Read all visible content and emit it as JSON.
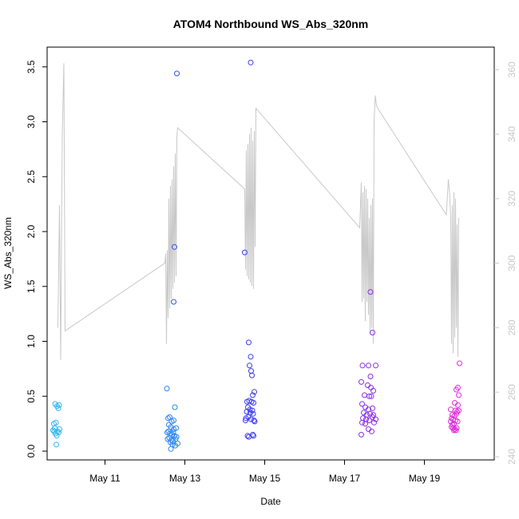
{
  "chart_data": {
    "type": "scatter",
    "title": "ATOM4 Northbound WS_Abs_320nm",
    "xlabel": "Date",
    "ylabel": "WS_Abs_320nm",
    "x_axis": {
      "unit": "day-of-May",
      "range": [
        9.55,
        20.75
      ],
      "ticks": [
        11,
        13,
        15,
        17,
        19
      ],
      "tick_labels": [
        "May 11",
        "May 13",
        "May 15",
        "May 17",
        "May 19"
      ]
    },
    "y_left": {
      "range": [
        -0.08,
        3.68
      ],
      "ticks": [
        0.0,
        0.5,
        1.0,
        1.5,
        2.0,
        2.5,
        3.0,
        3.5
      ],
      "tick_labels": [
        "0.0",
        "0.5",
        "1.0",
        "1.5",
        "2.0",
        "2.5",
        "3.0",
        "3.5"
      ]
    },
    "y_right": {
      "range": [
        239,
        367
      ],
      "ticks": [
        240,
        260,
        280,
        300,
        320,
        340,
        360
      ],
      "tick_labels": [
        "240",
        "260",
        "280",
        "300",
        "320",
        "340",
        "360"
      ],
      "color": "#c8c8c8"
    },
    "grid": false,
    "legend": "none",
    "line_series": {
      "axis": "right",
      "color": "#c8c8c8",
      "points": [
        [
          9.82,
          280
        ],
        [
          9.86,
          318
        ],
        [
          9.89,
          270
        ],
        [
          9.93,
          340
        ],
        [
          9.97,
          362
        ],
        [
          10.0,
          279
        ],
        [
          12.5,
          300
        ],
        [
          12.52,
          303
        ],
        [
          12.54,
          275
        ],
        [
          12.56,
          304
        ],
        [
          12.58,
          283
        ],
        [
          12.6,
          320
        ],
        [
          12.62,
          286
        ],
        [
          12.64,
          324
        ],
        [
          12.66,
          289
        ],
        [
          12.68,
          326
        ],
        [
          12.7,
          292
        ],
        [
          12.72,
          330
        ],
        [
          12.74,
          294
        ],
        [
          12.76,
          334
        ],
        [
          12.78,
          296
        ],
        [
          12.8,
          339
        ],
        [
          12.82,
          342
        ],
        [
          14.5,
          323
        ],
        [
          14.52,
          298
        ],
        [
          14.54,
          335
        ],
        [
          14.56,
          296
        ],
        [
          14.58,
          337
        ],
        [
          14.6,
          295
        ],
        [
          14.62,
          340
        ],
        [
          14.64,
          294
        ],
        [
          14.66,
          342
        ],
        [
          14.68,
          293
        ],
        [
          14.7,
          338
        ],
        [
          14.72,
          292
        ],
        [
          14.74,
          341
        ],
        [
          14.76,
          305
        ],
        [
          14.78,
          348
        ],
        [
          17.38,
          311
        ],
        [
          17.42,
          325
        ],
        [
          17.44,
          288
        ],
        [
          17.46,
          322
        ],
        [
          17.48,
          289
        ],
        [
          17.5,
          324
        ],
        [
          17.52,
          282
        ],
        [
          17.54,
          323
        ],
        [
          17.56,
          288
        ],
        [
          17.58,
          320
        ],
        [
          17.6,
          284
        ],
        [
          17.62,
          314
        ],
        [
          17.64,
          278
        ],
        [
          17.66,
          318
        ],
        [
          17.68,
          280
        ],
        [
          17.7,
          320
        ],
        [
          17.72,
          275
        ],
        [
          17.74,
          344
        ],
        [
          17.77,
          352
        ],
        [
          17.8,
          349
        ],
        [
          17.83,
          348
        ],
        [
          19.55,
          315
        ],
        [
          19.6,
          326
        ],
        [
          19.63,
          322
        ],
        [
          19.66,
          314
        ],
        [
          19.68,
          275
        ],
        [
          19.7,
          318
        ],
        [
          19.72,
          272
        ],
        [
          19.74,
          322
        ],
        [
          19.76,
          277
        ],
        [
          19.78,
          320
        ],
        [
          19.8,
          280
        ],
        [
          19.82,
          312
        ],
        [
          19.84,
          271
        ],
        [
          19.86,
          314
        ]
      ]
    },
    "scatter_series": {
      "axis": "left",
      "points": [
        [
          9.75,
          0.43,
          "#2bb6f2"
        ],
        [
          9.8,
          0.41,
          "#2bb6f2"
        ],
        [
          9.85,
          0.42,
          "#2bb6f2"
        ],
        [
          9.83,
          0.39,
          "#2bb6f2"
        ],
        [
          9.72,
          0.25,
          "#2bb6f2"
        ],
        [
          9.77,
          0.26,
          "#2bb6f2"
        ],
        [
          9.74,
          0.21,
          "#2bb6f2"
        ],
        [
          9.7,
          0.19,
          "#2bb6f2"
        ],
        [
          9.86,
          0.2,
          "#2bb6f2"
        ],
        [
          9.81,
          0.18,
          "#2bb6f2"
        ],
        [
          9.76,
          0.16,
          "#2bb6f2"
        ],
        [
          9.79,
          0.14,
          "#2bb6f2"
        ],
        [
          9.84,
          0.17,
          "#2bb6f2"
        ],
        [
          9.73,
          0.18,
          "#2bb6f2"
        ],
        [
          9.78,
          0.06,
          "#2bb6f2"
        ],
        [
          12.55,
          0.57,
          "#2b86f2"
        ],
        [
          12.75,
          0.4,
          "#2b86f2"
        ],
        [
          12.58,
          0.3,
          "#2b86f2"
        ],
        [
          12.62,
          0.31,
          "#2b86f2"
        ],
        [
          12.67,
          0.27,
          "#2b86f2"
        ],
        [
          12.72,
          0.28,
          "#2b86f2"
        ],
        [
          12.6,
          0.24,
          "#2b86f2"
        ],
        [
          12.65,
          0.22,
          "#2b86f2"
        ],
        [
          12.78,
          0.21,
          "#2b86f2"
        ],
        [
          12.56,
          0.17,
          "#2b86f2"
        ],
        [
          12.59,
          0.18,
          "#2b86f2"
        ],
        [
          12.63,
          0.16,
          "#2b86f2"
        ],
        [
          12.68,
          0.15,
          "#2b86f2"
        ],
        [
          12.71,
          0.17,
          "#2b86f2"
        ],
        [
          12.74,
          0.14,
          "#2b86f2"
        ],
        [
          12.79,
          0.13,
          "#2b86f2"
        ],
        [
          12.57,
          0.11,
          "#2b86f2"
        ],
        [
          12.61,
          0.12,
          "#2b86f2"
        ],
        [
          12.66,
          0.1,
          "#2b86f2"
        ],
        [
          12.7,
          0.09,
          "#2b86f2"
        ],
        [
          12.77,
          0.11,
          "#2b86f2"
        ],
        [
          12.64,
          0.08,
          "#2b86f2"
        ],
        [
          12.69,
          0.06,
          "#2b86f2"
        ],
        [
          12.76,
          0.05,
          "#2b86f2"
        ],
        [
          12.82,
          0.07,
          "#2b86f2"
        ],
        [
          12.65,
          0.02,
          "#2b86f2"
        ],
        [
          12.72,
          0.2,
          "#2b86f2"
        ],
        [
          12.8,
          3.44,
          "#2b55ee"
        ],
        [
          12.74,
          1.86,
          "#2b55ee"
        ],
        [
          12.72,
          1.36,
          "#2b55ee"
        ],
        [
          14.65,
          3.54,
          "#3b3bee"
        ],
        [
          14.5,
          1.81,
          "#3b3bee"
        ],
        [
          14.6,
          0.99,
          "#3b3bee"
        ],
        [
          14.65,
          0.86,
          "#3b3bee"
        ],
        [
          14.62,
          0.78,
          "#3b3bee"
        ],
        [
          14.66,
          0.73,
          "#3b3bee"
        ],
        [
          14.68,
          0.69,
          "#3b3bee"
        ],
        [
          14.74,
          0.54,
          "#3b3bee"
        ],
        [
          14.7,
          0.51,
          "#3b3bee"
        ],
        [
          14.56,
          0.45,
          "#3b3bee"
        ],
        [
          14.61,
          0.46,
          "#3b3bee"
        ],
        [
          14.67,
          0.45,
          "#3b3bee"
        ],
        [
          14.72,
          0.44,
          "#3b3bee"
        ],
        [
          14.58,
          0.4,
          "#3b3bee"
        ],
        [
          14.63,
          0.38,
          "#3b3bee"
        ],
        [
          14.69,
          0.37,
          "#3b3bee"
        ],
        [
          14.55,
          0.36,
          "#3b3bee"
        ],
        [
          14.64,
          0.35,
          "#3b3bee"
        ],
        [
          14.71,
          0.34,
          "#3b3bee"
        ],
        [
          14.53,
          0.3,
          "#3b3bee"
        ],
        [
          14.59,
          0.31,
          "#3b3bee"
        ],
        [
          14.66,
          0.29,
          "#3b3bee"
        ],
        [
          14.73,
          0.28,
          "#3b3bee"
        ],
        [
          14.52,
          0.28,
          "#3b3bee"
        ],
        [
          14.75,
          0.27,
          "#3b3bee"
        ],
        [
          14.57,
          0.14,
          "#3b3bee"
        ],
        [
          14.6,
          0.13,
          "#3b3bee"
        ],
        [
          14.7,
          0.15,
          "#3b3bee"
        ],
        [
          14.72,
          0.14,
          "#3b3bee"
        ],
        [
          17.65,
          1.45,
          "#8a2ee8"
        ],
        [
          17.7,
          1.08,
          "#8a2ee8"
        ],
        [
          17.45,
          0.78,
          "#8a2ee8"
        ],
        [
          17.6,
          0.78,
          "#8a2ee8"
        ],
        [
          17.78,
          0.78,
          "#8a2ee8"
        ],
        [
          17.65,
          0.68,
          "#8a2ee8"
        ],
        [
          17.42,
          0.63,
          "#8a2ee8"
        ],
        [
          17.58,
          0.6,
          "#8a2ee8"
        ],
        [
          17.66,
          0.58,
          "#8a2ee8"
        ],
        [
          17.72,
          0.55,
          "#8a2ee8"
        ],
        [
          17.5,
          0.51,
          "#8a2ee8"
        ],
        [
          17.62,
          0.5,
          "#8a2ee8"
        ],
        [
          17.67,
          0.5,
          "#8a2ee8"
        ],
        [
          17.44,
          0.43,
          "#8a2ee8"
        ],
        [
          17.52,
          0.4,
          "#8a2ee8"
        ],
        [
          17.6,
          0.38,
          "#8a2ee8"
        ],
        [
          17.7,
          0.39,
          "#8a2ee8"
        ],
        [
          17.48,
          0.35,
          "#8a2ee8"
        ],
        [
          17.56,
          0.33,
          "#8a2ee8"
        ],
        [
          17.64,
          0.34,
          "#8a2ee8"
        ],
        [
          17.72,
          0.33,
          "#8a2ee8"
        ],
        [
          17.46,
          0.3,
          "#8a2ee8"
        ],
        [
          17.54,
          0.29,
          "#8a2ee8"
        ],
        [
          17.62,
          0.28,
          "#8a2ee8"
        ],
        [
          17.7,
          0.31,
          "#8a2ee8"
        ],
        [
          17.78,
          0.29,
          "#8a2ee8"
        ],
        [
          17.44,
          0.26,
          "#8a2ee8"
        ],
        [
          17.52,
          0.25,
          "#8a2ee8"
        ],
        [
          17.74,
          0.26,
          "#8a2ee8"
        ],
        [
          17.6,
          0.2,
          "#8a2ee8"
        ],
        [
          17.68,
          0.18,
          "#8a2ee8"
        ],
        [
          17.42,
          0.15,
          "#8a2ee8"
        ],
        [
          19.88,
          0.8,
          "#e02ed8"
        ],
        [
          19.84,
          0.58,
          "#e02ed8"
        ],
        [
          19.8,
          0.56,
          "#e02ed8"
        ],
        [
          19.86,
          0.51,
          "#e02ed8"
        ],
        [
          19.76,
          0.44,
          "#e02ed8"
        ],
        [
          19.84,
          0.42,
          "#e02ed8"
        ],
        [
          19.66,
          0.38,
          "#e02ed8"
        ],
        [
          19.78,
          0.37,
          "#e02ed8"
        ],
        [
          19.82,
          0.36,
          "#e02ed8"
        ],
        [
          19.86,
          0.37,
          "#e02ed8"
        ],
        [
          19.7,
          0.33,
          "#e02ed8"
        ],
        [
          19.75,
          0.32,
          "#e02ed8"
        ],
        [
          19.8,
          0.34,
          "#e02ed8"
        ],
        [
          19.68,
          0.3,
          "#e02ed8"
        ],
        [
          19.72,
          0.29,
          "#e02ed8"
        ],
        [
          19.78,
          0.28,
          "#e02ed8"
        ],
        [
          19.83,
          0.27,
          "#e02ed8"
        ],
        [
          19.66,
          0.27,
          "#e02ed8"
        ],
        [
          19.7,
          0.24,
          "#e02ed8"
        ],
        [
          19.74,
          0.25,
          "#e02ed8"
        ],
        [
          19.68,
          0.22,
          "#e02ed8"
        ],
        [
          19.72,
          0.21,
          "#e02ed8"
        ],
        [
          19.76,
          0.2,
          "#e02ed8"
        ],
        [
          19.81,
          0.21,
          "#e02ed8"
        ],
        [
          19.74,
          0.19,
          "#e02ed8"
        ],
        [
          19.79,
          0.19,
          "#e02ed8"
        ]
      ]
    }
  }
}
